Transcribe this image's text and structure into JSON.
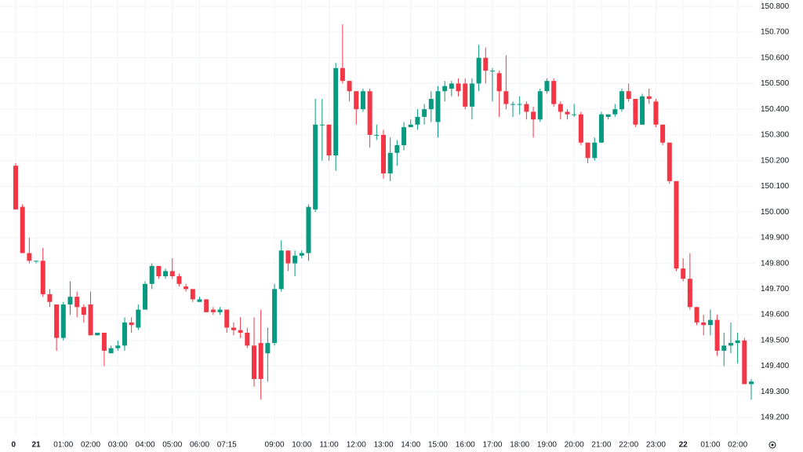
{
  "chart_data": {
    "type": "candlestick",
    "categories": [
      "0",
      null,
      null,
      "21",
      null,
      null,
      null,
      "01:00",
      null,
      null,
      null,
      "02:00",
      null,
      null,
      null,
      "03:00",
      null,
      null,
      null,
      "04:00",
      null,
      null,
      null,
      "05:00",
      null,
      null,
      null,
      "06:00",
      null,
      null,
      null,
      "07:15",
      null,
      null,
      null,
      null,
      null,
      null,
      "09:00",
      null,
      null,
      null,
      "10:00",
      null,
      null,
      null,
      "11:00",
      null,
      null,
      null,
      "12:00",
      null,
      null,
      null,
      "13:00",
      null,
      null,
      null,
      "14:00",
      null,
      null,
      null,
      "15:00",
      null,
      null,
      null,
      "16:00",
      null,
      null,
      null,
      "17:00",
      null,
      null,
      null,
      "18:00",
      null,
      null,
      null,
      "19:00",
      null,
      null,
      null,
      "20:00",
      null,
      null,
      null,
      "21:00",
      null,
      null,
      null,
      "22:00",
      null,
      null,
      null,
      "23:00",
      null,
      null,
      null,
      "22",
      null,
      null,
      null,
      "01:00",
      null,
      null,
      null,
      "02:00",
      null,
      null
    ],
    "open": [
      150.18,
      150.02,
      149.84,
      149.81,
      149.81,
      149.68,
      149.64,
      149.51,
      149.64,
      149.67,
      149.63,
      149.64,
      149.52,
      149.53,
      149.45,
      149.47,
      149.48,
      149.57,
      149.55,
      149.62,
      149.72,
      149.79,
      149.75,
      149.77,
      149.75,
      149.71,
      149.7,
      149.65,
      149.66,
      149.62,
      149.61,
      149.62,
      149.55,
      149.54,
      149.53,
      149.48,
      149.49,
      149.45,
      149.49,
      149.7,
      149.85,
      149.8,
      149.83,
      149.84,
      150.01,
      150.34,
      150.34,
      150.22,
      150.56,
      150.51,
      150.47,
      150.4,
      150.47,
      150.3,
      150.3,
      150.15,
      150.23,
      150.26,
      150.33,
      150.34,
      150.37,
      150.4,
      150.35,
      150.47,
      150.48,
      150.5,
      150.5,
      150.41,
      150.5,
      150.6,
      150.55,
      150.54,
      150.47,
      150.42,
      150.42,
      150.42,
      150.39,
      150.36,
      150.47,
      150.51,
      150.42,
      150.39,
      150.38,
      150.38,
      150.27,
      150.21,
      150.27,
      150.37,
      150.38,
      150.4,
      150.47,
      150.44,
      150.34,
      150.45,
      150.43,
      150.34,
      150.27,
      150.12,
      149.78,
      149.74,
      149.63,
      149.57,
      149.56,
      149.58,
      149.46,
      149.48,
      149.49,
      149.5,
      149.33
    ],
    "high": [
      150.19,
      150.03,
      149.9,
      149.81,
      149.86,
      149.7,
      149.64,
      149.65,
      149.73,
      149.69,
      149.64,
      149.69,
      149.53,
      149.53,
      149.48,
      149.5,
      149.59,
      149.59,
      149.64,
      149.73,
      149.8,
      149.79,
      149.78,
      149.82,
      149.76,
      149.72,
      149.7,
      149.67,
      149.66,
      149.63,
      149.63,
      149.62,
      149.57,
      149.59,
      149.55,
      149.59,
      149.62,
      149.55,
      149.72,
      149.89,
      149.85,
      149.85,
      149.85,
      150.03,
      150.44,
      150.44,
      150.34,
      150.58,
      150.73,
      150.51,
      150.47,
      150.48,
      150.48,
      150.34,
      150.32,
      150.29,
      150.28,
      150.35,
      150.36,
      150.4,
      150.42,
      150.47,
      150.49,
      150.51,
      150.51,
      150.52,
      150.52,
      150.52,
      150.65,
      150.64,
      150.56,
      150.55,
      150.61,
      150.43,
      150.45,
      150.43,
      150.41,
      150.48,
      150.52,
      150.52,
      150.43,
      150.4,
      150.42,
      150.39,
      150.27,
      150.29,
      150.39,
      150.38,
      150.42,
      150.48,
      150.5,
      150.44,
      150.46,
      150.48,
      150.44,
      150.34,
      150.27,
      150.12,
      149.82,
      149.84,
      149.63,
      149.6,
      149.62,
      149.6,
      149.53,
      149.57,
      149.53,
      149.51,
      149.35
    ],
    "low": [
      150.01,
      149.84,
      149.8,
      149.8,
      149.67,
      149.63,
      149.46,
      149.5,
      149.6,
      149.59,
      149.57,
      149.52,
      149.52,
      149.4,
      149.45,
      149.46,
      149.46,
      149.53,
      149.54,
      149.62,
      149.7,
      149.74,
      149.74,
      149.74,
      149.71,
      149.69,
      149.65,
      149.65,
      149.61,
      149.6,
      149.6,
      149.53,
      149.52,
      149.51,
      149.47,
      149.32,
      149.27,
      149.34,
      149.48,
      149.69,
      149.77,
      149.75,
      149.82,
      149.81,
      150.0,
      150.2,
      150.2,
      150.16,
      150.5,
      150.43,
      150.34,
      150.39,
      150.25,
      150.28,
      150.13,
      150.12,
      150.18,
      150.24,
      150.33,
      150.32,
      150.34,
      150.35,
      150.29,
      150.43,
      150.45,
      150.45,
      150.4,
      150.36,
      150.47,
      150.5,
      150.43,
      150.37,
      150.4,
      150.37,
      150.38,
      150.36,
      150.29,
      150.35,
      150.46,
      150.41,
      150.36,
      150.36,
      150.37,
      150.26,
      150.19,
      150.2,
      150.27,
      150.36,
      150.37,
      150.39,
      150.43,
      150.33,
      150.34,
      150.42,
      150.33,
      150.26,
      150.11,
      149.77,
      149.73,
      149.62,
      149.56,
      149.52,
      149.52,
      149.44,
      149.4,
      149.45,
      149.41,
      149.33,
      149.27
    ],
    "close": [
      150.01,
      149.84,
      149.81,
      149.81,
      149.68,
      149.65,
      149.51,
      149.64,
      149.67,
      149.63,
      149.6,
      149.52,
      149.53,
      149.46,
      149.47,
      149.48,
      149.57,
      149.56,
      149.62,
      149.72,
      149.79,
      149.75,
      149.77,
      149.75,
      149.72,
      149.7,
      149.66,
      149.66,
      149.61,
      149.61,
      149.62,
      149.55,
      149.54,
      149.53,
      149.48,
      149.35,
      149.35,
      149.49,
      149.7,
      149.85,
      149.8,
      149.83,
      149.84,
      150.02,
      150.34,
      150.34,
      150.22,
      150.56,
      150.51,
      150.47,
      150.4,
      150.47,
      150.3,
      150.3,
      150.15,
      150.23,
      150.26,
      150.33,
      150.34,
      150.37,
      150.4,
      150.44,
      150.47,
      150.49,
      150.5,
      150.47,
      150.41,
      150.5,
      150.6,
      150.55,
      150.55,
      150.47,
      150.42,
      150.42,
      150.42,
      150.39,
      150.36,
      150.47,
      150.51,
      150.42,
      150.39,
      150.38,
      150.38,
      150.27,
      150.21,
      150.27,
      150.38,
      150.38,
      150.4,
      150.47,
      150.44,
      150.34,
      150.45,
      150.44,
      150.34,
      150.27,
      150.12,
      149.78,
      149.74,
      149.63,
      149.57,
      149.56,
      149.58,
      149.46,
      149.48,
      149.49,
      149.5,
      149.33,
      149.34
    ],
    "up_color": "#089981",
    "down_color": "#f23645",
    "ylim": [
      149.13,
      150.825
    ],
    "yticks": [
      {
        "value": 149.2,
        "label": "149.200"
      },
      {
        "value": 149.3,
        "label": "149.300"
      },
      {
        "value": 149.4,
        "label": "149.400"
      },
      {
        "value": 149.5,
        "label": "149.500"
      },
      {
        "value": 149.6,
        "label": "149.600"
      },
      {
        "value": 149.7,
        "label": "149.700"
      },
      {
        "value": 149.8,
        "label": "149.800"
      },
      {
        "value": 149.9,
        "label": "149.900"
      },
      {
        "value": 150,
        "label": "150.000"
      },
      {
        "value": 150.1,
        "label": "150.100"
      },
      {
        "value": 150.2,
        "label": "150.200"
      },
      {
        "value": 150.3,
        "label": "150.300"
      },
      {
        "value": 150.4,
        "label": "150.400"
      },
      {
        "value": 150.5,
        "label": "150.500"
      },
      {
        "value": 150.6,
        "label": "150.600"
      },
      {
        "value": 150.7,
        "label": "150.700"
      },
      {
        "value": 150.8,
        "label": "150.800"
      }
    ],
    "grid": true
  }
}
